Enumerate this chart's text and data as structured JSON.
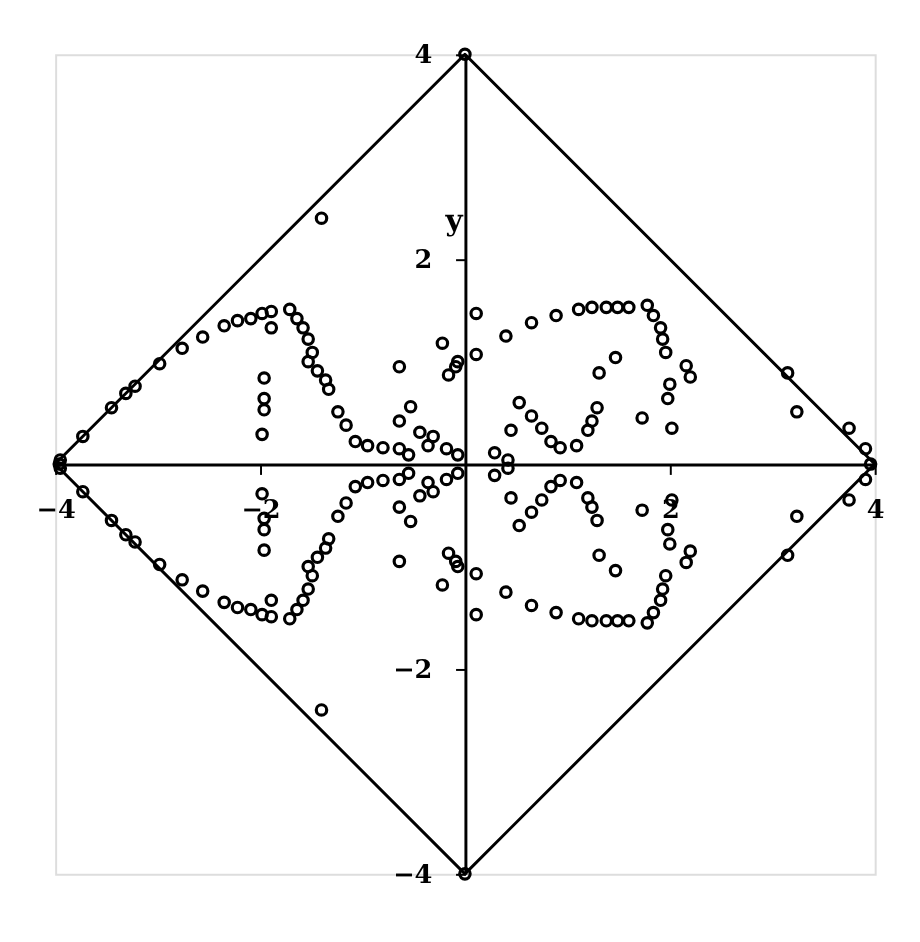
{
  "chart_data": {
    "type": "scatter",
    "ylabel": "y",
    "xlim": [
      -4,
      4
    ],
    "ylim": [
      -4,
      4
    ],
    "xticks": [
      -4,
      -2,
      2,
      4
    ],
    "yticks": [
      -4,
      -2,
      2,
      4
    ],
    "grid": false,
    "marker": "circle",
    "series": [
      {
        "type": "line",
        "color": "#000000",
        "marker": "none",
        "x": [
          -4,
          0,
          4
        ],
        "values": [
          0,
          4,
          0
        ]
      },
      {
        "type": "line",
        "color": "#000000",
        "marker": "none",
        "x": [
          -4,
          0,
          4
        ],
        "values": [
          0,
          -4,
          0
        ]
      },
      {
        "color": "#000000",
        "x": [
          0,
          0,
          -3.96,
          3.96,
          -1.4,
          -3.95,
          -3.73,
          -3.45,
          -3.31,
          -3.22,
          -2.98,
          -2.76,
          -2.56,
          -2.35,
          -2.22,
          -2.09,
          -1.98,
          -1.89,
          -1.89,
          -1.71,
          -1.64,
          -1.58,
          -1.53,
          -1.49,
          -1.53,
          -1.44,
          -1.36,
          -1.33,
          -1.24,
          -1.16,
          -1.07,
          -0.95,
          -0.8,
          -0.64,
          -1.96,
          -1.96,
          -1.96,
          -1.98,
          -0.64,
          -0.53,
          -0.64,
          -0.44,
          -0.31,
          -0.22,
          -0.16,
          -0.09,
          -0.55,
          -0.36,
          -0.18,
          -0.07,
          0.11,
          0.4,
          0.65,
          0.89,
          1.11,
          1.24,
          1.38,
          1.49,
          1.6,
          1.78,
          1.84,
          1.91,
          1.93,
          1.96,
          1.47,
          1.31,
          2.16,
          2.2,
          2.0,
          1.98,
          2.02,
          1.73,
          0.11,
          -0.07,
          0.53,
          0.65,
          0.45,
          0.75,
          0.84,
          0.93,
          1.09,
          1.2,
          1.29,
          1.24,
          0.29,
          0.42,
          3.15,
          3.24,
          3.75,
          3.91,
          -1.4,
          -3.95,
          -3.73,
          -3.45,
          -3.31,
          -3.22,
          -2.98,
          -2.76,
          -2.56,
          -2.35,
          -2.22,
          -2.09,
          -1.98,
          -1.89,
          -1.89,
          -1.71,
          -1.64,
          -1.58,
          -1.53,
          -1.49,
          -1.53,
          -1.44,
          -1.36,
          -1.33,
          -1.24,
          -1.16,
          -1.07,
          -0.95,
          -0.8,
          -0.64,
          -1.96,
          -1.96,
          -1.96,
          -1.98,
          -0.64,
          -0.53,
          -0.64,
          -0.44,
          -0.31,
          -0.22,
          -0.16,
          -0.09,
          -0.55,
          -0.36,
          -0.18,
          -0.07,
          0.11,
          0.4,
          0.65,
          0.89,
          1.11,
          1.24,
          1.38,
          1.49,
          1.6,
          1.78,
          1.84,
          1.91,
          1.93,
          1.96,
          1.47,
          1.31,
          2.16,
          2.2,
          2.0,
          1.98,
          2.02,
          1.73,
          0.11,
          -0.07,
          0.53,
          0.65,
          0.45,
          0.75,
          0.84,
          0.93,
          1.09,
          1.2,
          1.29,
          1.24,
          0.29,
          0.42,
          3.15,
          3.24,
          3.75,
          3.91
        ],
        "values": [
          4,
          -4,
          0,
          0,
          2.4,
          0.04,
          0.27,
          0.55,
          0.69,
          0.76,
          0.98,
          1.13,
          1.24,
          1.35,
          1.4,
          1.42,
          1.47,
          1.49,
          1.33,
          1.51,
          1.42,
          1.33,
          1.22,
          1.09,
          1.0,
          0.91,
          0.82,
          0.73,
          0.51,
          0.38,
          0.22,
          0.18,
          0.16,
          0.15,
          0.84,
          0.64,
          0.53,
          0.29,
          0.95,
          0.56,
          0.42,
          0.31,
          0.27,
          1.18,
          0.87,
          0.95,
          0.09,
          0.18,
          0.15,
          0.09,
          1.47,
          1.25,
          1.38,
          1.45,
          1.51,
          1.53,
          1.53,
          1.53,
          1.53,
          1.55,
          1.45,
          1.33,
          1.22,
          1.09,
          1.04,
          0.89,
          0.96,
          0.85,
          0.78,
          0.64,
          0.35,
          0.45,
          1.07,
          1.0,
          0.6,
          0.47,
          0.33,
          0.35,
          0.22,
          0.16,
          0.18,
          0.33,
          0.55,
          0.42,
          0.11,
          0.04,
          0.89,
          0.51,
          0.35,
          0.15,
          -2.4,
          -0.04,
          -0.27,
          -0.55,
          -0.69,
          -0.76,
          -0.98,
          -1.13,
          -1.24,
          -1.35,
          -1.4,
          -1.42,
          -1.47,
          -1.49,
          -1.33,
          -1.51,
          -1.42,
          -1.33,
          -1.22,
          -1.09,
          -1.0,
          -0.91,
          -0.82,
          -0.73,
          -0.51,
          -0.38,
          -0.22,
          -0.18,
          -0.16,
          -0.15,
          -0.84,
          -0.64,
          -0.53,
          -0.29,
          -0.95,
          -0.56,
          -0.42,
          -0.31,
          -0.27,
          -1.18,
          -0.87,
          -0.95,
          -0.09,
          -0.18,
          -0.15,
          -0.09,
          -1.47,
          -1.25,
          -1.38,
          -1.45,
          -1.51,
          -1.53,
          -1.53,
          -1.53,
          -1.53,
          -1.55,
          -1.45,
          -1.33,
          -1.22,
          -1.09,
          -1.04,
          -0.89,
          -0.96,
          -0.85,
          -0.78,
          -0.64,
          -0.35,
          -0.45,
          -1.07,
          -1.0,
          -0.6,
          -0.47,
          -0.33,
          -0.35,
          -0.22,
          -0.16,
          -0.18,
          -0.33,
          -0.55,
          -0.42,
          -0.11,
          -0.04,
          -0.89,
          -0.51,
          -0.35,
          -0.15
        ]
      }
    ]
  }
}
